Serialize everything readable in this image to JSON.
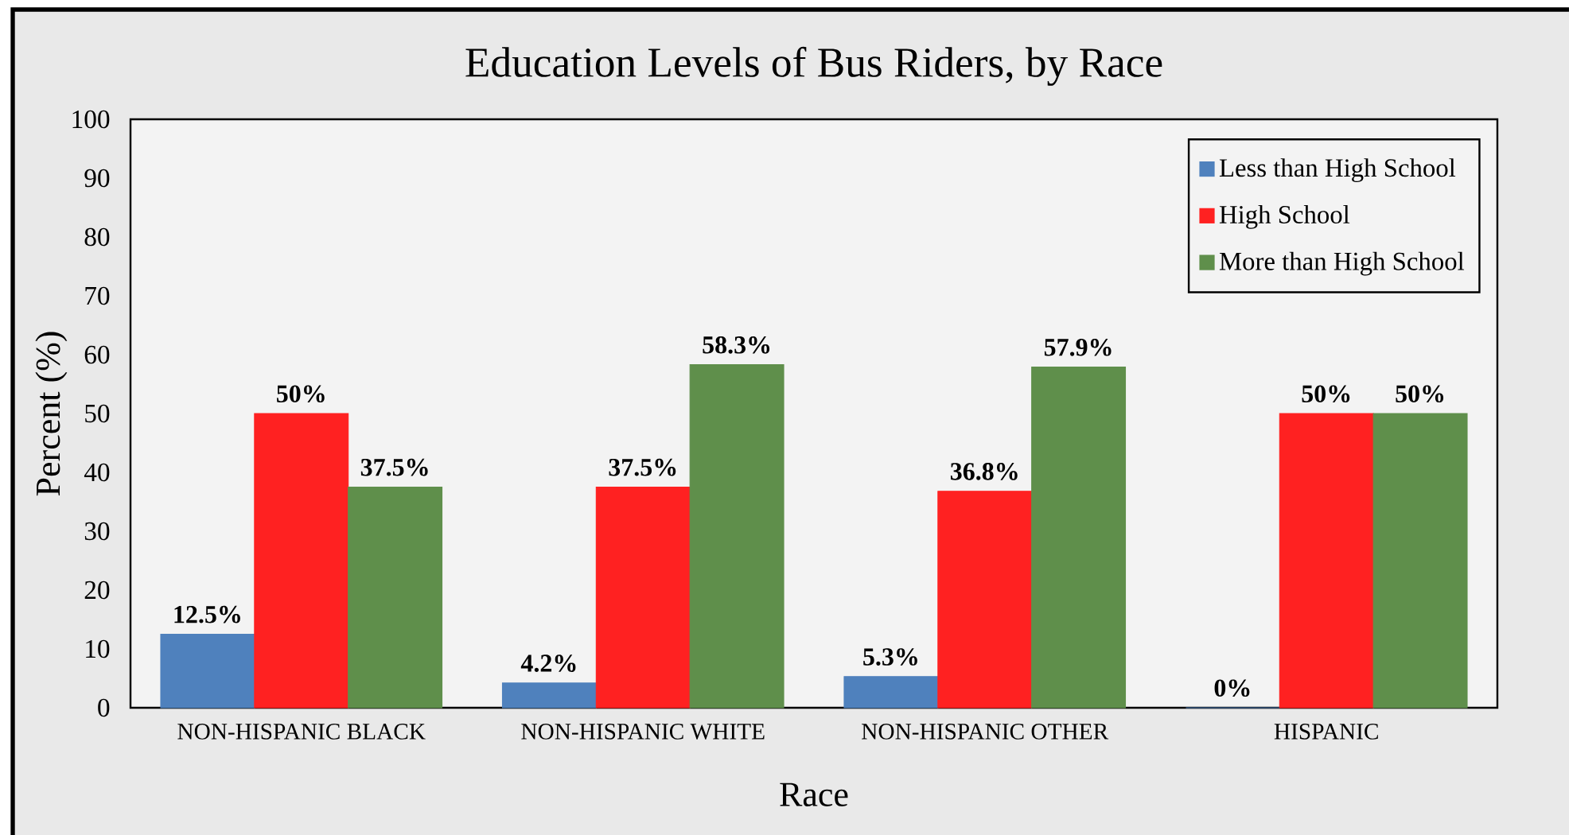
{
  "chart_data": {
    "type": "bar",
    "title": "Education Levels of Bus Riders, by Race",
    "xlabel": "Race",
    "ylabel": "Percent (%)",
    "categories": [
      "NON-HISPANIC BLACK",
      "NON-HISPANIC WHITE",
      "NON-HISPANIC OTHER",
      "HISPANIC"
    ],
    "series": [
      {
        "name": "Less than High School",
        "color": "#4f81bd",
        "values": [
          12.5,
          4.2,
          5.3,
          0
        ],
        "value_labels": [
          "12.5%",
          "4.2%",
          "5.3%",
          "0%"
        ]
      },
      {
        "name": "High School",
        "color": "#ff2121",
        "values": [
          50,
          37.5,
          36.8,
          50
        ],
        "value_labels": [
          "50%",
          "37.5%",
          "36.8%",
          "50%"
        ]
      },
      {
        "name": "More than High School",
        "color": "#5f8f4b",
        "values": [
          37.5,
          58.3,
          57.9,
          50
        ],
        "value_labels": [
          "37.5%",
          "58.3%",
          "57.9%",
          "50%"
        ]
      }
    ],
    "ylim": [
      0,
      100
    ],
    "yticks": [
      0,
      10,
      20,
      30,
      40,
      50,
      60,
      70,
      80,
      90,
      100
    ],
    "legend": "top right"
  }
}
